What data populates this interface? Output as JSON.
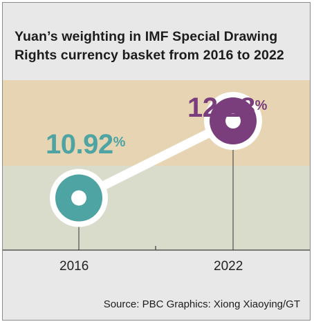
{
  "title": "Yuan’s weighting in IMF Special Drawing Rights currency basket from 2016 to 2022",
  "source": "Source: PBC  Graphics: Xiong Xiaoying/GT",
  "colors": {
    "upper_band": "#e6d4b2",
    "lower_band": "#d9dccb",
    "teal": "#4ea3a3",
    "purple": "#7a3e7d",
    "connector": "#ffffff"
  },
  "chart_data": {
    "type": "line",
    "categories": [
      "2016",
      "2022"
    ],
    "values": [
      10.92,
      12.28
    ],
    "value_labels": [
      "10.92",
      "12.28"
    ],
    "unit": "%",
    "ylim": [
      10.0,
      13.0
    ],
    "band_split": 11.5,
    "grid": false
  }
}
